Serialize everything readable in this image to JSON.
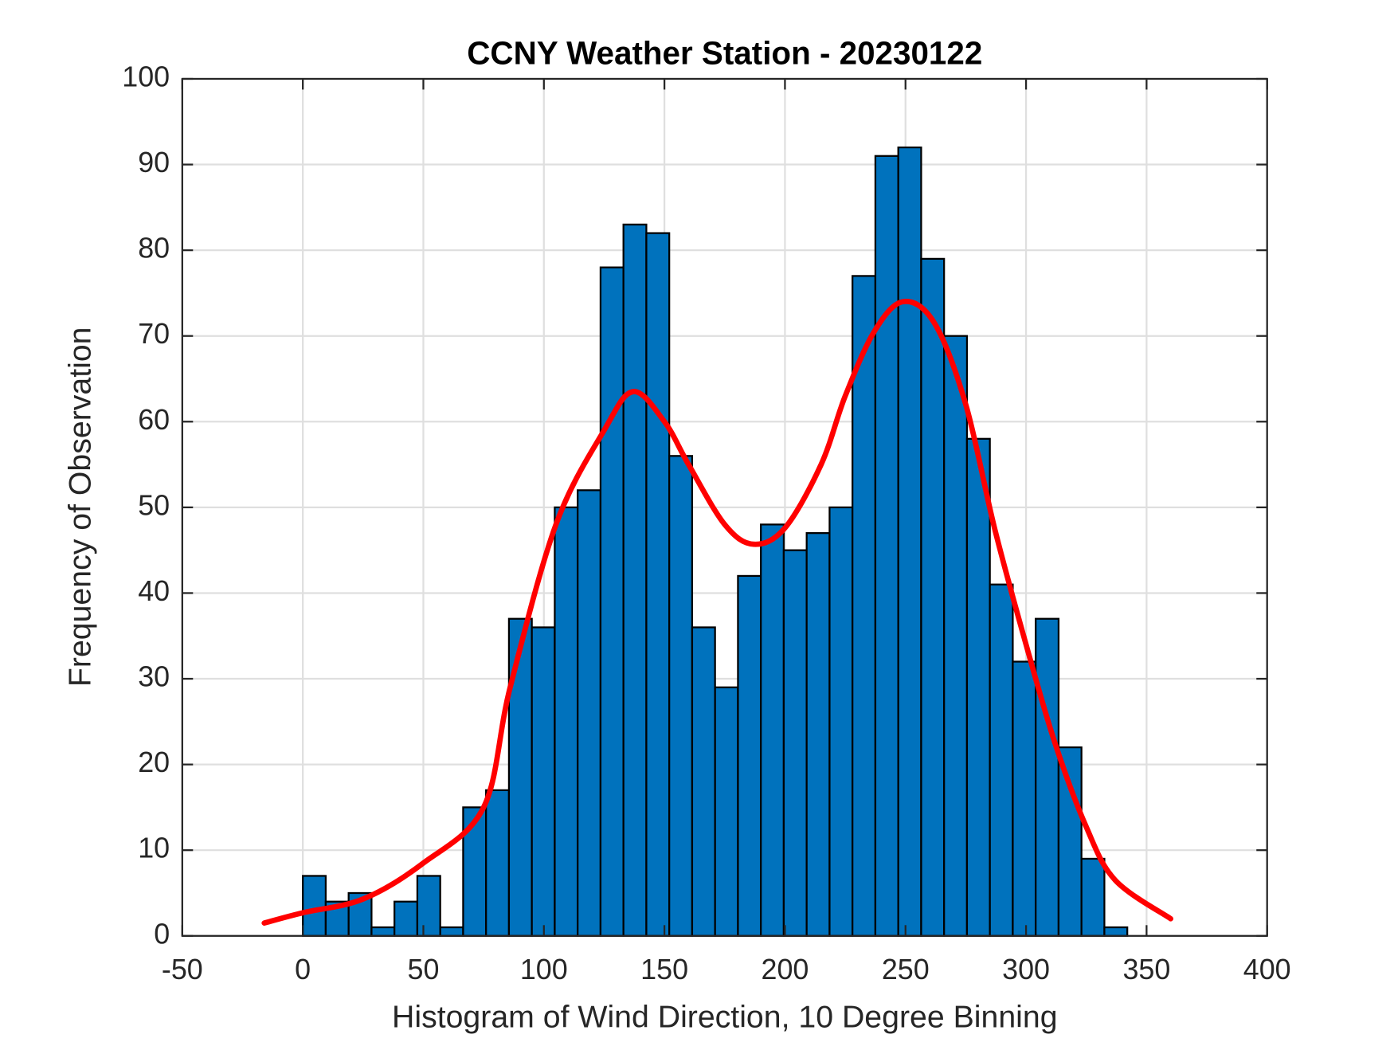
{
  "chart_data": {
    "type": "histogram",
    "title": "CCNY Weather Station - 20230122",
    "x_label": "Histogram of Wind Direction, 10 Degree Binning",
    "y_label": "Frequency of Observation",
    "bins": [
      0,
      9.5,
      19,
      28.5,
      38,
      47.5,
      57,
      66.5,
      76,
      85.5,
      95,
      104.5,
      114,
      123.5,
      133,
      142.5,
      152,
      161.5,
      171,
      180.5,
      190,
      199.5,
      209,
      218.5,
      228,
      237.5,
      247,
      256.5,
      266,
      275.5,
      285,
      294.5,
      304,
      313.5,
      323,
      332.5,
      342
    ],
    "counts": [
      7,
      4,
      5,
      1,
      4,
      7,
      1,
      15,
      17,
      37,
      36,
      50,
      52,
      78,
      83,
      82,
      56,
      36,
      29,
      42,
      48,
      45,
      47,
      50,
      77,
      91,
      92,
      79,
      70,
      58,
      41,
      32,
      37,
      22,
      9,
      1
    ],
    "color": "#0072bd",
    "curve": {
      "color": "#ff0000",
      "x": [
        -16,
        0,
        25,
        50,
        75,
        86,
        105,
        125,
        137,
        150,
        160,
        175,
        187,
        200,
        215,
        225,
        237,
        249,
        262,
        275,
        287,
        300,
        312,
        325,
        337,
        360
      ],
      "values": [
        1.5,
        2.7,
        4.3,
        8.5,
        15,
        29,
        48,
        59,
        63.5,
        60,
        55,
        48,
        45.7,
        47.6,
        55,
        63,
        70.5,
        74,
        71.5,
        62,
        47.5,
        34,
        22.5,
        12.7,
        6.5,
        2
      ]
    },
    "xlim": [
      -50,
      400
    ],
    "xticks": [
      -50,
      0,
      50,
      100,
      150,
      200,
      250,
      300,
      350,
      400
    ],
    "ylim": [
      0,
      100
    ],
    "yticks": [
      0,
      10,
      20,
      30,
      40,
      50,
      60,
      70,
      80,
      90,
      100
    ],
    "grid": true
  }
}
